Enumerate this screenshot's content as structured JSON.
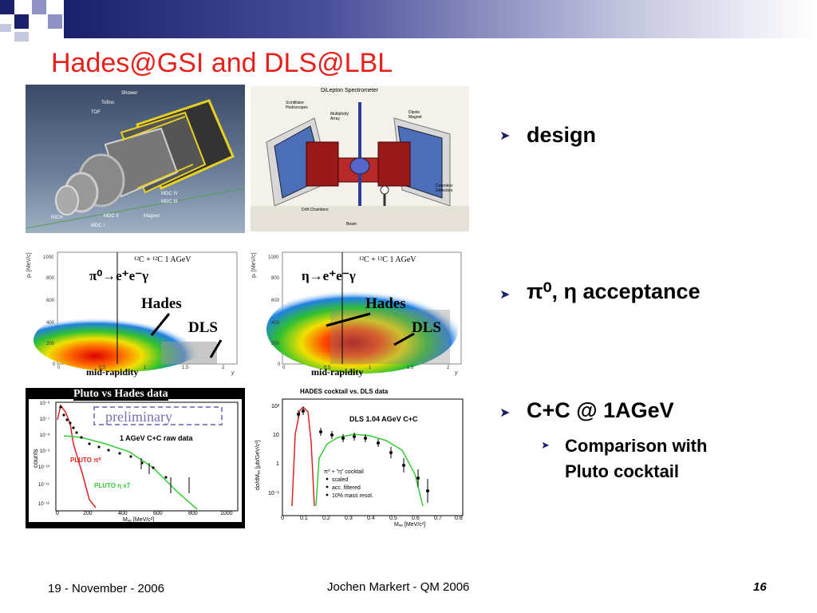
{
  "title": "Hades@GSI and DLS@LBL",
  "bullets": [
    {
      "text": "design"
    },
    {
      "text": "π⁰, η acceptance"
    },
    {
      "text": "C+C @ 1AGeV"
    }
  ],
  "sub_bullet": {
    "line1": "Comparison with",
    "line2": "Pluto cocktail"
  },
  "footer": {
    "date": "19 - November - 2006",
    "center": "Jochen Markert - QM 2006",
    "page": "16"
  },
  "fig_hades": {
    "labels": [
      "Shower",
      "Tofino",
      "TOF",
      "RICH",
      "MDC I",
      "MDC II",
      "MDC III",
      "MDC IV",
      "Magnet"
    ]
  },
  "fig_dls": {
    "title": "DiLepton Spectrometer",
    "labels": [
      "Scintillator Hodoscopes",
      "Multiplicity Array",
      "Dipole Magnet",
      "Cerenkov Detectors",
      "Drift Chambers",
      "Beam"
    ]
  },
  "acc_left": {
    "reaction": "¹²C + ¹²C  1 AGeV",
    "decay": "π⁰→e⁺e⁻γ",
    "hades": "Hades",
    "dls": "DLS",
    "midrap": "mid-rapidity",
    "ylabel": "pₜ [MeV/c]",
    "xlabel": "y",
    "yticks": [
      "1000",
      "800",
      "600",
      "400",
      "200",
      "0"
    ],
    "xticks": [
      "0",
      "0.5",
      "1",
      "1.5",
      "2"
    ]
  },
  "acc_right": {
    "reaction": "¹²C + ¹²C  1 AGeV",
    "decay": "η→e⁺e⁻γ",
    "hades": "Hades",
    "dls": "DLS",
    "midrap": "mid-rapidity",
    "ylabel": "pₜ [MeV/c]",
    "xlabel": "y",
    "yticks": [
      "1000",
      "800",
      "600",
      "400",
      "200",
      "0"
    ],
    "xticks": [
      "0",
      "0.5",
      "1",
      "1.5",
      "2"
    ]
  },
  "pluto": {
    "header": "Pluto vs Hades data",
    "preliminary": "preliminary",
    "raw": "1 AGeV C+C raw data",
    "pi0": "PLUTO π⁰",
    "eta": "PLUTO η x7",
    "ylabel": "counts",
    "xlabel": "Mₑₑ [MeV/c²]",
    "yticks": [
      "10⁻⁶",
      "10⁻⁷",
      "10⁻⁸",
      "10⁻⁹",
      "10⁻¹⁰",
      "10⁻¹¹",
      "10⁻¹²"
    ],
    "xticks": [
      "0",
      "200",
      "400",
      "600",
      "800",
      "1000"
    ]
  },
  "cocktail": {
    "header": "HADES cocktail vs. DLS data",
    "dls_label": "DLS 1.04 AGeV C+C",
    "legend": [
      "π⁰ + \"η\" cocktail",
      "scaled",
      "acc. filtered",
      "10% mass resol."
    ],
    "ylabel": "dσ/dMₑₑ  [μb/GeV/c²]",
    "xlabel": "Mₑₑ  [MeV/c²]",
    "yticks": [
      "10²",
      "10",
      "1",
      "10⁻¹"
    ],
    "xticks": [
      "0",
      "0.1",
      "0.2",
      "0.3",
      "0.4",
      "0.5",
      "0.6",
      "0.7",
      "0.8"
    ]
  }
}
